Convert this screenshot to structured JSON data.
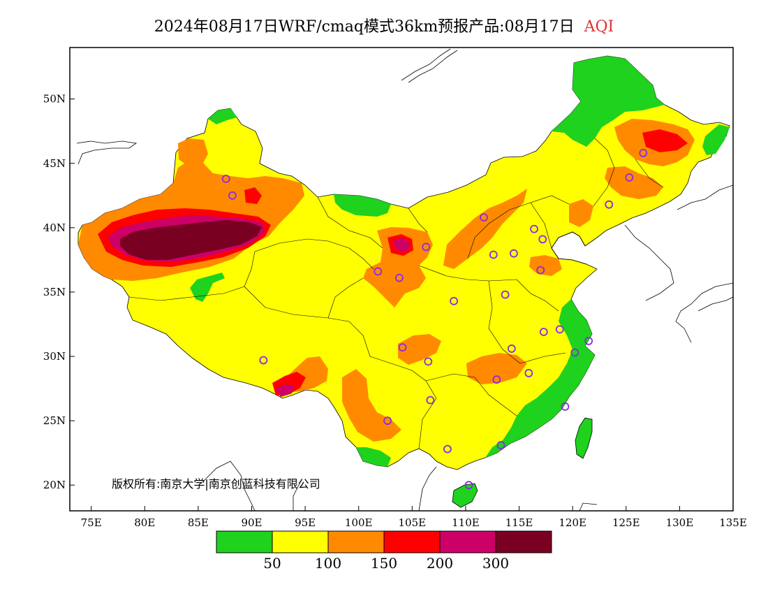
{
  "title": {
    "main": "2024年08月17日WRF/cmaq模式36km预报产品:08月17日",
    "variable": "AQI"
  },
  "copyright": "版权所有:南京大学|南京创蓝科技有限公司",
  "axes": {
    "lon_ticks": [
      "75E",
      "80E",
      "85E",
      "90E",
      "95E",
      "100E",
      "105E",
      "110E",
      "115E",
      "120E",
      "125E",
      "130E",
      "135E"
    ],
    "lat_ticks": [
      "20N",
      "25N",
      "30N",
      "35N",
      "40N",
      "45N",
      "50N"
    ],
    "lon_range": [
      73,
      135
    ],
    "lat_range": [
      18,
      54
    ]
  },
  "colorbar": {
    "colors": [
      "#1ed21e",
      "#ffff00",
      "#ff8a00",
      "#ff0000",
      "#cc0066",
      "#7a0022"
    ],
    "labels": [
      "50",
      "100",
      "150",
      "200",
      "300"
    ]
  },
  "colors": {
    "good": "#1ed21e",
    "moderate": "#ffff00",
    "light": "#ff8a00",
    "medium": "#ff0000",
    "heavy": "#cc0066",
    "severe": "#7a0022",
    "station_marker": "#8a2be2"
  },
  "stations": [
    {
      "lon": 87.6,
      "lat": 43.8
    },
    {
      "lon": 88.2,
      "lat": 42.5
    },
    {
      "lon": 91.1,
      "lat": 29.7
    },
    {
      "lon": 101.8,
      "lat": 36.6
    },
    {
      "lon": 103.8,
      "lat": 36.1
    },
    {
      "lon": 106.3,
      "lat": 38.5
    },
    {
      "lon": 111.7,
      "lat": 40.8
    },
    {
      "lon": 112.6,
      "lat": 37.9
    },
    {
      "lon": 114.5,
      "lat": 38.0
    },
    {
      "lon": 116.4,
      "lat": 39.9
    },
    {
      "lon": 117.2,
      "lat": 39.1
    },
    {
      "lon": 117.0,
      "lat": 36.7
    },
    {
      "lon": 113.7,
      "lat": 34.8
    },
    {
      "lon": 108.9,
      "lat": 34.3
    },
    {
      "lon": 104.1,
      "lat": 30.7
    },
    {
      "lon": 106.5,
      "lat": 29.6
    },
    {
      "lon": 106.7,
      "lat": 26.6
    },
    {
      "lon": 102.7,
      "lat": 25.0
    },
    {
      "lon": 108.3,
      "lat": 22.8
    },
    {
      "lon": 113.3,
      "lat": 23.1
    },
    {
      "lon": 110.3,
      "lat": 20.0
    },
    {
      "lon": 112.9,
      "lat": 28.2
    },
    {
      "lon": 114.3,
      "lat": 30.6
    },
    {
      "lon": 115.9,
      "lat": 28.7
    },
    {
      "lon": 117.3,
      "lat": 31.9
    },
    {
      "lon": 118.8,
      "lat": 32.1
    },
    {
      "lon": 120.2,
      "lat": 30.3
    },
    {
      "lon": 121.5,
      "lat": 31.2
    },
    {
      "lon": 119.3,
      "lat": 26.1
    },
    {
      "lon": 123.4,
      "lat": 41.8
    },
    {
      "lon": 125.3,
      "lat": 43.9
    },
    {
      "lon": 126.6,
      "lat": 45.8
    }
  ]
}
